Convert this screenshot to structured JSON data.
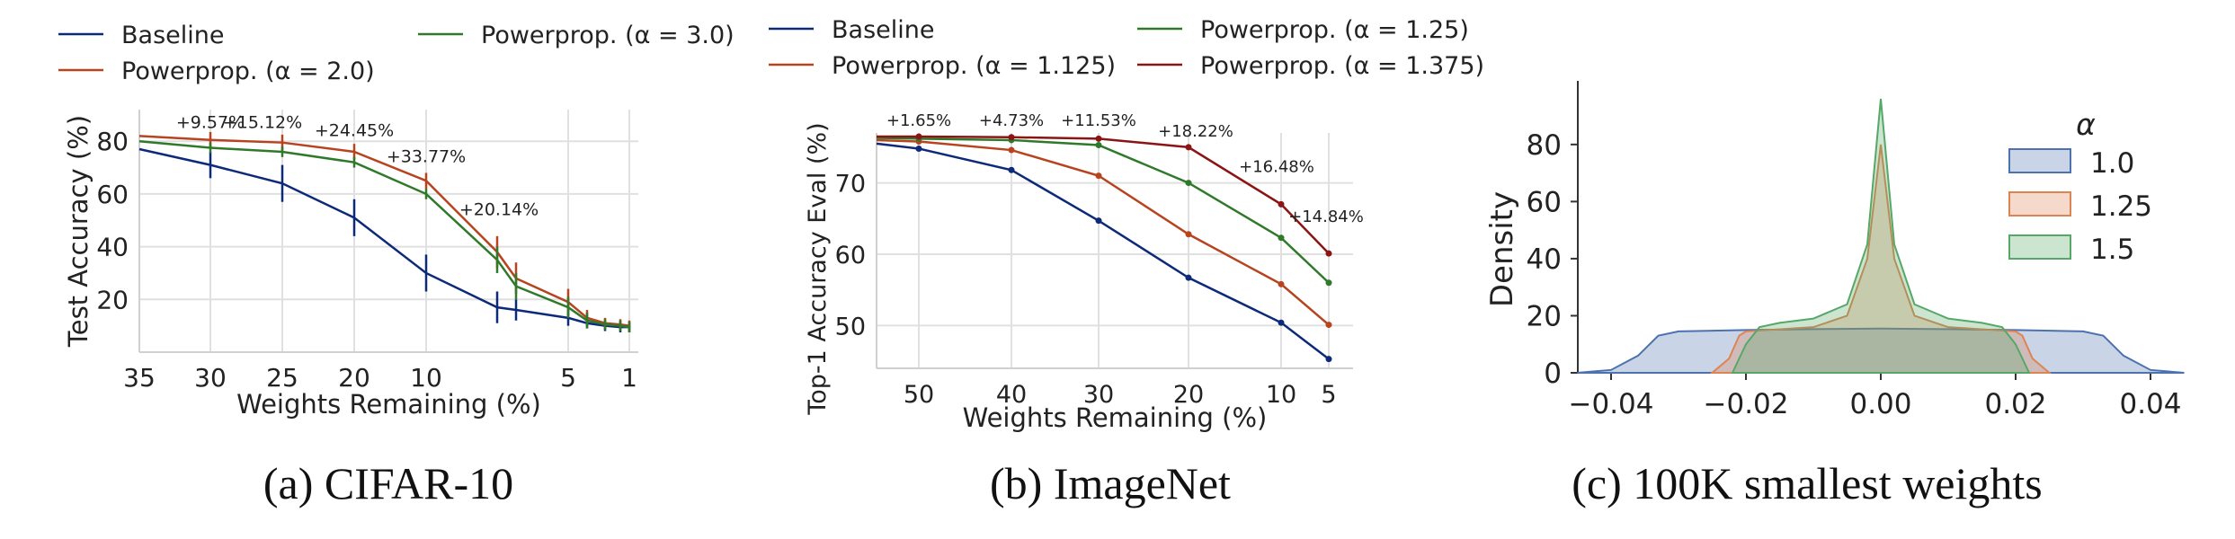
{
  "figure": {
    "captions": [
      "(a) CIFAR-10",
      "(b) ImageNet",
      "(c) 100K smallest weights"
    ],
    "colors": {
      "baseline": "#0d2a7a",
      "pp_a": "#b8441f",
      "pp_b": "#2f7a2a",
      "pp_c": "#8b1414",
      "kde_1": "#4c72b0",
      "kde_125": "#dd8452",
      "kde_15": "#55a868"
    }
  },
  "chart_data": [
    {
      "type": "line",
      "title": "",
      "xlabel": "Weights Remaining (%)",
      "ylabel": "Test Accuracy (%)",
      "x_ticks": [
        35,
        30,
        25,
        20,
        10,
        5,
        1
      ],
      "y_ticks": [
        20,
        40,
        60,
        80
      ],
      "ylim": [
        0,
        92
      ],
      "grid": true,
      "legend": {
        "placement": "top",
        "entries": [
          "Baseline",
          "Powerprop. (α = 2.0)",
          "Powerprop. (α = 3.0)"
        ]
      },
      "x": [
        35,
        30,
        25,
        20,
        10,
        7,
        6,
        5,
        4,
        3,
        2,
        1
      ],
      "series": [
        {
          "name": "Baseline",
          "values": [
            77,
            71,
            64,
            51,
            30,
            17,
            16,
            13,
            11,
            10,
            9.5,
            9.5
          ],
          "err": [
            0,
            5,
            7,
            7,
            7,
            6,
            4,
            3,
            2,
            2,
            2,
            2
          ]
        },
        {
          "name": "Powerprop. (α = 2.0)",
          "values": [
            82,
            80.5,
            79.5,
            76,
            65,
            38,
            28,
            19,
            13,
            11,
            10.5,
            10
          ],
          "err": [
            0,
            3,
            3,
            3,
            3,
            6,
            6,
            5,
            3,
            2,
            2,
            2
          ]
        },
        {
          "name": "Powerprop. (α = 3.0)",
          "values": [
            80,
            77.5,
            76,
            72,
            60,
            35,
            25,
            17,
            12,
            10.5,
            10,
            9.5
          ],
          "err": [
            0,
            2,
            2,
            2,
            2,
            5,
            5,
            4,
            3,
            2,
            2,
            2
          ]
        }
      ],
      "annotations": [
        {
          "x": 30,
          "y": 85,
          "text": "+9.57%"
        },
        {
          "x": 26,
          "y": 85,
          "text": "+15.12%"
        },
        {
          "x": 20,
          "y": 82,
          "text": "+24.45%"
        },
        {
          "x": 10,
          "y": 72,
          "text": "+33.77%"
        },
        {
          "x": 6,
          "y": 52,
          "text": "+20.14%"
        }
      ]
    },
    {
      "type": "line",
      "title": "",
      "xlabel": "Weights Remaining (%)",
      "ylabel": "Top-1 Accuracy Eval (%)",
      "x_ticks": [
        50,
        40,
        30,
        20,
        10,
        5
      ],
      "y_ticks": [
        50,
        60,
        70
      ],
      "ylim": [
        44,
        77
      ],
      "grid": true,
      "legend": {
        "placement": "top",
        "entries": [
          "Baseline",
          "Powerprop. (α = 1.125)",
          "Powerprop. (α = 1.25)",
          "Powerprop. (α = 1.375)"
        ]
      },
      "x": [
        55,
        50,
        40,
        30,
        20,
        10,
        5
      ],
      "series": [
        {
          "name": "Baseline",
          "values": [
            75.5,
            74.8,
            71.8,
            64.7,
            56.7,
            50.4,
            45.3
          ]
        },
        {
          "name": "Powerprop. (α = 1.125)",
          "values": [
            76.0,
            75.8,
            74.6,
            71.0,
            62.8,
            55.8,
            50.1
          ]
        },
        {
          "name": "Powerprop. (α = 1.25)",
          "values": [
            76.3,
            76.2,
            76.0,
            75.3,
            70.0,
            62.3,
            56.0
          ]
        },
        {
          "name": "Powerprop. (α = 1.375)",
          "values": [
            76.5,
            76.5,
            76.4,
            76.2,
            75.0,
            67.0,
            60.1
          ]
        }
      ],
      "annotations": [
        {
          "x": 50,
          "y": 78,
          "text": "+1.65%"
        },
        {
          "x": 40,
          "y": 78,
          "text": "+4.73%"
        },
        {
          "x": 30,
          "y": 78,
          "text": "+11.53%"
        },
        {
          "x": 20,
          "y": 76.5,
          "text": "+18.22%"
        },
        {
          "x": 10,
          "y": 71.5,
          "text": "+16.48%"
        },
        {
          "x": 5,
          "y": 64.5,
          "text": "+14.84%"
        }
      ]
    },
    {
      "type": "area",
      "title": "",
      "xlabel": "",
      "ylabel": "Density",
      "x_ticks": [
        "−0.04",
        "−0.02",
        "0.00",
        "0.02",
        "0.04"
      ],
      "y_ticks": [
        0,
        20,
        40,
        60,
        80
      ],
      "xlim": [
        -0.045,
        0.045
      ],
      "ylim": [
        0,
        100
      ],
      "grid": false,
      "legend": {
        "placement": "top-right",
        "title": "α",
        "entries": [
          "1.0",
          "1.25",
          "1.5"
        ]
      },
      "series": [
        {
          "name": "1.0",
          "x": [
            -0.045,
            -0.04,
            -0.036,
            -0.033,
            -0.03,
            -0.02,
            -0.01,
            0.0,
            0.01,
            0.02,
            0.03,
            0.033,
            0.036,
            0.04,
            0.045
          ],
          "values": [
            0,
            1,
            6,
            13,
            14.5,
            15,
            15.3,
            15.5,
            15.3,
            15,
            14.5,
            13,
            6,
            1,
            0
          ]
        },
        {
          "name": "1.25",
          "x": [
            -0.025,
            -0.0225,
            -0.021,
            -0.02,
            -0.01,
            -0.005,
            -0.002,
            0.0,
            0.002,
            0.005,
            0.01,
            0.02,
            0.021,
            0.0225,
            0.025
          ],
          "values": [
            0,
            5,
            13,
            14.5,
            16,
            20,
            40,
            80,
            40,
            20,
            16,
            14.5,
            13,
            5,
            0
          ]
        },
        {
          "name": "1.5",
          "x": [
            -0.022,
            -0.02,
            -0.018,
            -0.015,
            -0.01,
            -0.005,
            -0.002,
            0.0,
            0.002,
            0.005,
            0.01,
            0.015,
            0.018,
            0.02,
            0.022
          ],
          "values": [
            0,
            10,
            16,
            17.5,
            19,
            24,
            45,
            96,
            45,
            24,
            19,
            17.5,
            16,
            10,
            0
          ]
        }
      ]
    }
  ]
}
